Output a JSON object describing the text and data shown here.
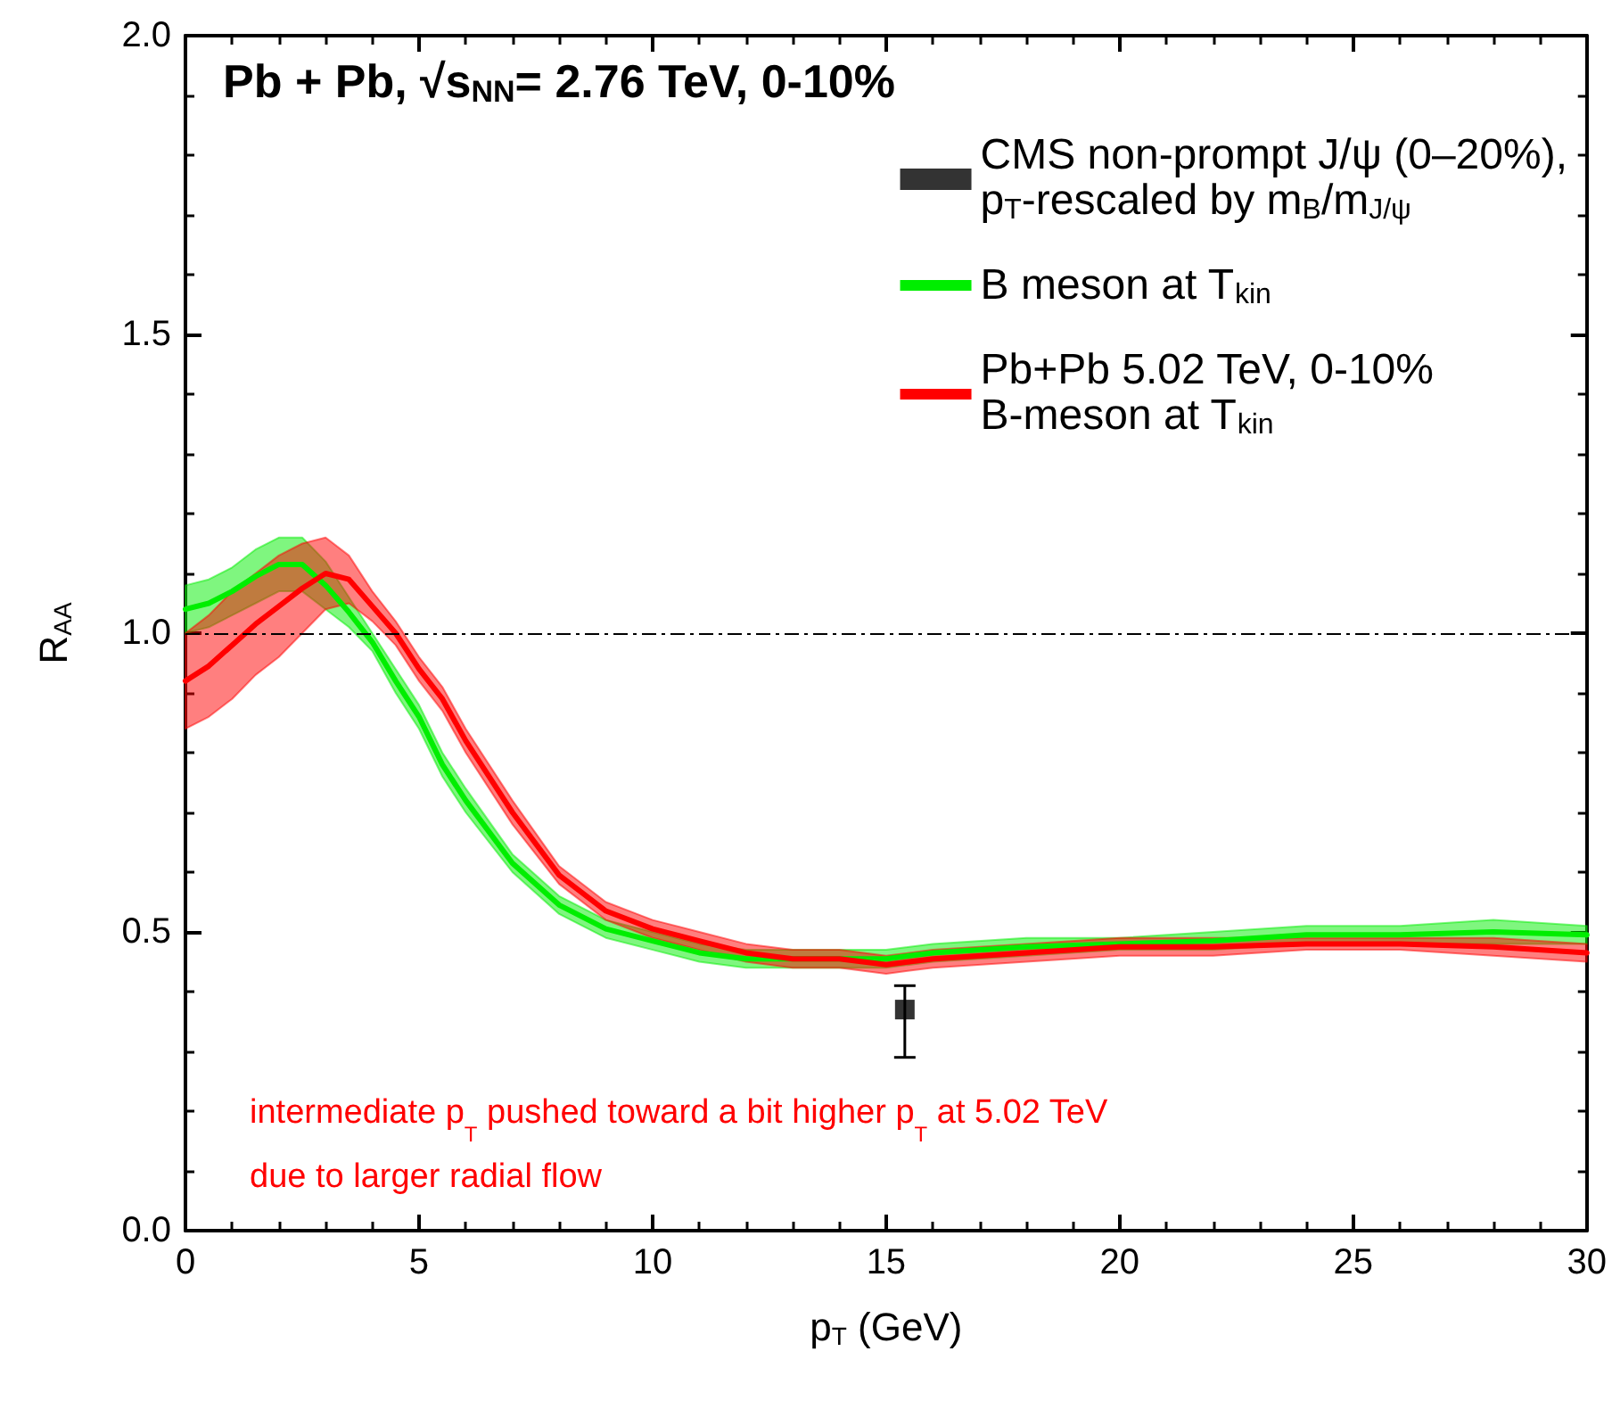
{
  "chart_data": {
    "type": "line",
    "title": "Pb + Pb, √s$_{NN}$= 2.76 TeV, 0-10%",
    "xlabel": "p$_{T}$ (GeV)",
    "ylabel": "R$_{AA}$",
    "annotations": [
      "intermediate p$_{T}$ pushed toward a bit higher p$_{T}$ at 5.02 TeV\ndue to larger radial flow"
    ],
    "xlim": [
      0,
      30
    ],
    "xticks": [
      0,
      5,
      10,
      15,
      20,
      25,
      30
    ],
    "ylim": [
      0,
      2.0
    ],
    "yticks": [
      {
        "value": 0,
        "label": "0.0"
      },
      {
        "value": 0.5,
        "label": "0.5"
      },
      {
        "value": 1.0,
        "label": "1.0"
      },
      {
        "value": 1.5,
        "label": "1.5"
      },
      {
        "value": 2.0,
        "label": "2.0"
      }
    ],
    "grid": false,
    "legend": "top right",
    "ref_lines": [
      {
        "axis": "y",
        "value": 1.0,
        "color": "#000000",
        "line_style": "dashed"
      }
    ],
    "series": [
      {
        "name": "CMS non-prompt J/ψ (0–20%),\np$_{T}$-rescaled by m$_{B}$/m$_{J/ψ}$",
        "type": "scatter",
        "marker": "square",
        "color": "#000000",
        "x": [
          15.4
        ],
        "values": [
          0.37
        ],
        "errors": [
          [
            0.29,
            0.41
          ]
        ]
      },
      {
        "name": "B meson at T$_{kin}$",
        "color": "#00ee00",
        "x": [
          0,
          0.5,
          1,
          1.5,
          2,
          2.5,
          3,
          3.5,
          4,
          4.5,
          5,
          5.5,
          6,
          7,
          8,
          9,
          10,
          11,
          12,
          13,
          14,
          15,
          16,
          18,
          20,
          22,
          24,
          26,
          28,
          30
        ],
        "values": [
          1.04,
          1.05,
          1.07,
          1.095,
          1.115,
          1.115,
          1.08,
          1.035,
          0.985,
          0.92,
          0.86,
          0.78,
          0.72,
          0.615,
          0.545,
          0.505,
          0.485,
          0.465,
          0.455,
          0.455,
          0.455,
          0.455,
          0.465,
          0.475,
          0.48,
          0.485,
          0.495,
          0.495,
          0.5,
          0.495
        ],
        "lower": [
          1.0,
          1.01,
          1.03,
          1.05,
          1.07,
          1.07,
          1.04,
          1.01,
          0.97,
          0.9,
          0.84,
          0.76,
          0.7,
          0.6,
          0.53,
          0.49,
          0.47,
          0.45,
          0.44,
          0.44,
          0.44,
          0.44,
          0.45,
          0.46,
          0.47,
          0.47,
          0.48,
          0.48,
          0.48,
          0.48
        ],
        "upper": [
          1.08,
          1.09,
          1.11,
          1.14,
          1.16,
          1.16,
          1.12,
          1.06,
          1.0,
          0.94,
          0.88,
          0.8,
          0.74,
          0.63,
          0.56,
          0.52,
          0.5,
          0.48,
          0.47,
          0.47,
          0.47,
          0.47,
          0.48,
          0.49,
          0.49,
          0.5,
          0.51,
          0.51,
          0.52,
          0.51
        ]
      },
      {
        "name": "Pb+Pb 5.02 TeV, 0-10%\nB-meson at T$_{kin}$",
        "color": "#ff0000",
        "x": [
          0,
          0.5,
          1,
          1.5,
          2,
          2.5,
          3,
          3.5,
          4,
          4.5,
          5,
          5.5,
          6,
          7,
          8,
          9,
          10,
          11,
          12,
          13,
          14,
          15,
          16,
          18,
          20,
          22,
          24,
          26,
          28,
          30
        ],
        "values": [
          0.92,
          0.945,
          0.98,
          1.015,
          1.045,
          1.075,
          1.1,
          1.09,
          1.045,
          1.0,
          0.94,
          0.89,
          0.82,
          0.7,
          0.595,
          0.535,
          0.505,
          0.485,
          0.465,
          0.455,
          0.455,
          0.445,
          0.455,
          0.465,
          0.475,
          0.475,
          0.48,
          0.48,
          0.475,
          0.465
        ],
        "lower": [
          0.84,
          0.86,
          0.89,
          0.93,
          0.96,
          1.0,
          1.04,
          1.05,
          1.02,
          0.98,
          0.92,
          0.87,
          0.8,
          0.68,
          0.58,
          0.52,
          0.49,
          0.47,
          0.45,
          0.44,
          0.44,
          0.43,
          0.44,
          0.45,
          0.46,
          0.46,
          0.47,
          0.47,
          0.46,
          0.45
        ],
        "upper": [
          1.0,
          1.03,
          1.07,
          1.1,
          1.13,
          1.15,
          1.16,
          1.13,
          1.07,
          1.02,
          0.96,
          0.91,
          0.84,
          0.72,
          0.61,
          0.55,
          0.52,
          0.5,
          0.48,
          0.47,
          0.47,
          0.46,
          0.47,
          0.48,
          0.49,
          0.49,
          0.49,
          0.49,
          0.49,
          0.48
        ]
      }
    ]
  }
}
